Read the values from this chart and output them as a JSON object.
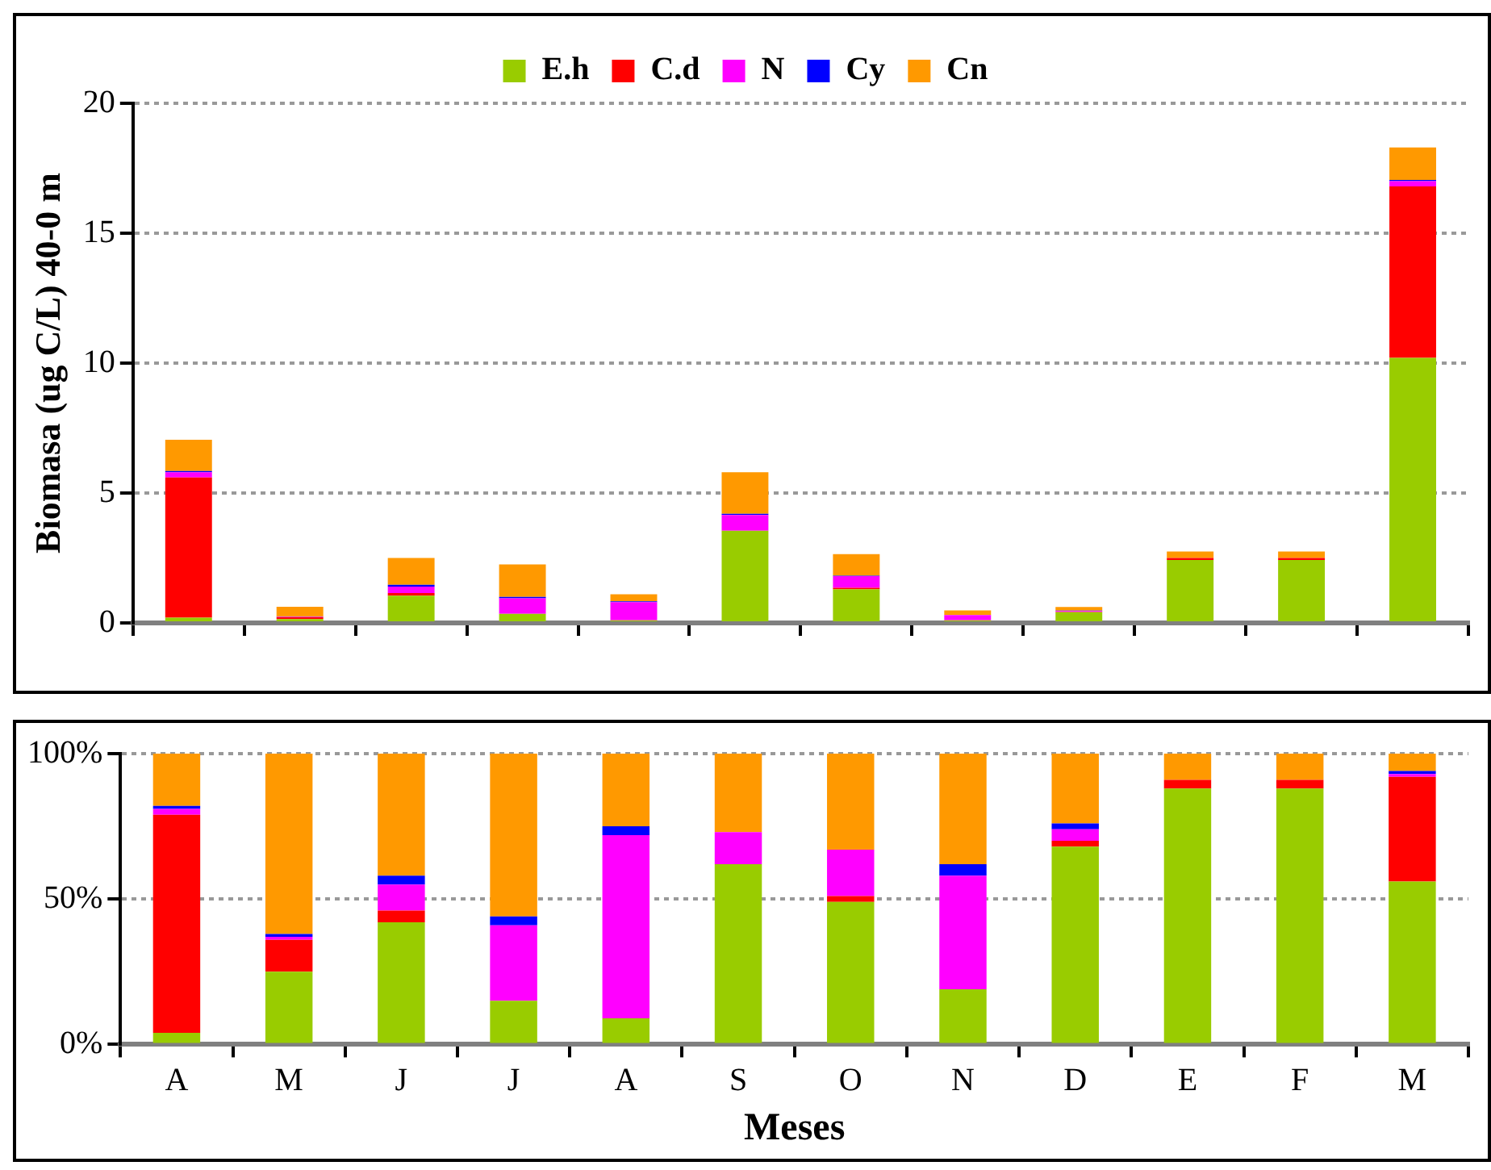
{
  "chart_data": [
    {
      "type": "bar",
      "stacked": true,
      "ylabel": "Biomasa (ug C/L) 40-0 m",
      "categories": [
        null,
        null,
        null,
        null,
        null,
        null,
        null,
        null,
        null,
        null,
        null,
        null
      ],
      "ylim": [
        0,
        20
      ],
      "yticks": [
        0,
        5,
        10,
        15,
        20
      ],
      "grid": "y",
      "legend": "top",
      "series": [
        {
          "name": "E.h",
          "color": "#99cc00",
          "values": [
            0.2,
            0.15,
            1.05,
            0.35,
            0.1,
            3.55,
            1.3,
            0.1,
            0.41,
            2.42,
            2.42,
            10.2
          ]
        },
        {
          "name": "C.d",
          "color": "#ff0000",
          "values": [
            5.4,
            0.07,
            0.1,
            0,
            0,
            0,
            0.05,
            0,
            0.02,
            0.08,
            0.08,
            6.6
          ]
        },
        {
          "name": "N",
          "color": "#ff00ff",
          "values": [
            0.2,
            0.01,
            0.25,
            0.6,
            0.7,
            0.6,
            0.45,
            0.2,
            0.03,
            0,
            0,
            0.2
          ]
        },
        {
          "name": "Cy",
          "color": "#0000ff",
          "values": [
            0.05,
            0.01,
            0.07,
            0.05,
            0.03,
            0.05,
            0.02,
            null,
            0.01,
            0,
            0,
            0.05
          ]
        },
        {
          "name": "Cn",
          "color": "#ff9900",
          "values": [
            1.2,
            0.38,
            1.03,
            1.25,
            0.27,
            1.6,
            0.83,
            0.18,
            0.14,
            0.25,
            0.25,
            1.25
          ]
        }
      ]
    },
    {
      "type": "bar",
      "stacked": true,
      "xlabel": "Meses",
      "categories": [
        "A",
        "M",
        "J",
        "J",
        "A",
        "S",
        "O",
        "N",
        "D",
        "E",
        "F",
        "M"
      ],
      "ylim": [
        0,
        100
      ],
      "yticks": [
        {
          "value": 0,
          "label": "0%"
        },
        {
          "value": 50,
          "label": "50%"
        },
        {
          "value": 100,
          "label": "100%"
        }
      ],
      "grid": "y",
      "series": [
        {
          "color": "#99cc00",
          "values": [
            4,
            25,
            42,
            15,
            9,
            62,
            49,
            19,
            68,
            88,
            88,
            56
          ]
        },
        {
          "color": "#ff0000",
          "values": [
            75,
            11,
            4,
            0,
            0,
            0,
            2,
            0,
            2,
            3,
            3,
            36
          ]
        },
        {
          "color": "#ff00ff",
          "values": [
            2,
            1,
            9,
            26,
            63,
            11,
            16,
            39,
            4,
            0,
            0,
            1
          ]
        },
        {
          "color": "#0000ff",
          "values": [
            1,
            1,
            3,
            3,
            3,
            0,
            0,
            4,
            2,
            0,
            0,
            1
          ]
        },
        {
          "color": "#ff9900",
          "values": [
            18,
            62,
            42,
            56,
            25,
            27,
            33,
            38,
            24,
            9,
            9,
            6
          ]
        }
      ]
    }
  ]
}
